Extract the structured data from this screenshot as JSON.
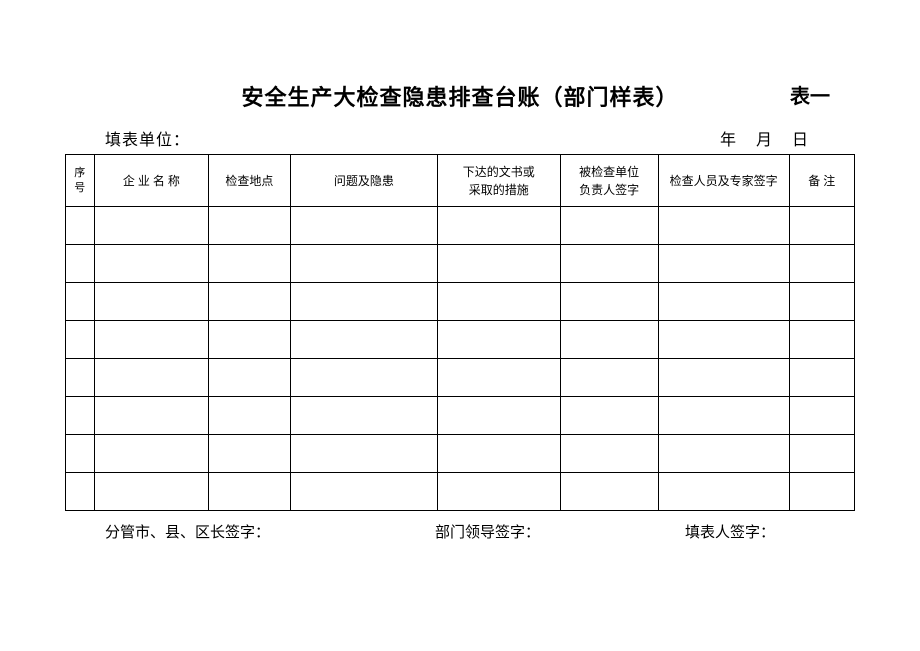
{
  "title": "安全生产大检查隐患排查台账（部门样表）",
  "table_number": "表一",
  "meta": {
    "filling_unit_label": "填表单位：",
    "date_label": "年　月　日"
  },
  "table": {
    "columns": [
      {
        "key": "seq",
        "label": "序号",
        "class": "col-seq",
        "hint": "narrow"
      },
      {
        "key": "enterprise",
        "label": "企 业 名 称",
        "class": "col-enterprise",
        "hint": "letter-space"
      },
      {
        "key": "location",
        "label": "检查地点",
        "class": "col-location",
        "hint": ""
      },
      {
        "key": "problem",
        "label": "问题及隐患",
        "class": "col-problem",
        "hint": ""
      },
      {
        "key": "doc",
        "label": "下达的文书或\n采取的措施",
        "class": "col-doc",
        "hint": "multiline"
      },
      {
        "key": "inspected",
        "label": "被检查单位\n负责人签字",
        "class": "col-inspected",
        "hint": "multiline"
      },
      {
        "key": "inspector",
        "label": "检查人员及专家签字",
        "class": "col-inspector",
        "hint": ""
      },
      {
        "key": "remark",
        "label": "备  注",
        "class": "col-remark",
        "hint": "letter-space"
      }
    ],
    "row_count": 8
  },
  "signatures": {
    "left": "分管市、县、区长签字：",
    "middle": "部门领导签字：",
    "right": "填表人签字："
  },
  "style": {
    "background_color": "#ffffff",
    "border_color": "#000000",
    "title_fontsize": 22,
    "header_fontsize": 12,
    "meta_fontsize": 16,
    "sign_fontsize": 15
  }
}
